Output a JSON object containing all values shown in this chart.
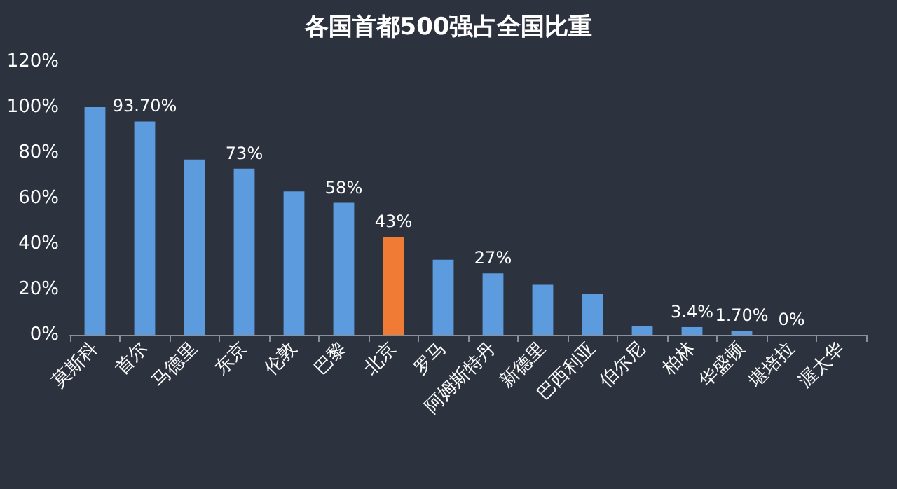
{
  "chart_data": {
    "type": "bar",
    "title": "各国首都500强占全国比重",
    "categories": [
      "莫斯科",
      "首尔",
      "马德里",
      "东京",
      "伦敦",
      "巴黎",
      "北京",
      "罗马",
      "阿姆斯特丹",
      "新德里",
      "巴西利亚",
      "伯尔尼",
      "柏林",
      "华盛顿",
      "堪培拉",
      "渥太华"
    ],
    "values": [
      100,
      93.7,
      77,
      73,
      63,
      58,
      43,
      33,
      27,
      22,
      18,
      4,
      3.4,
      1.7,
      0,
      0
    ],
    "value_labels": [
      null,
      "93.70%",
      null,
      "73%",
      null,
      "58%",
      "43%",
      null,
      "27%",
      null,
      null,
      null,
      "3.4%",
      "1.70%",
      "0%",
      null
    ],
    "colors": [
      "#5b9bde",
      "#5b9bde",
      "#5b9bde",
      "#5b9bde",
      "#5b9bde",
      "#5b9bde",
      "#f07b34",
      "#5b9bde",
      "#5b9bde",
      "#5b9bde",
      "#5b9bde",
      "#5b9bde",
      "#5b9bde",
      "#5b9bde",
      "#5b9bde",
      "#5b9bde"
    ],
    "ylim": [
      0,
      120
    ],
    "yticks": [
      {
        "value": 0,
        "label": "0%"
      },
      {
        "value": 20,
        "label": "20%"
      },
      {
        "value": 40,
        "label": "40%"
      },
      {
        "value": 60,
        "label": "60%"
      },
      {
        "value": 80,
        "label": "80%"
      },
      {
        "value": 100,
        "label": "100%"
      },
      {
        "value": 120,
        "label": "120%"
      }
    ],
    "grid": false
  }
}
